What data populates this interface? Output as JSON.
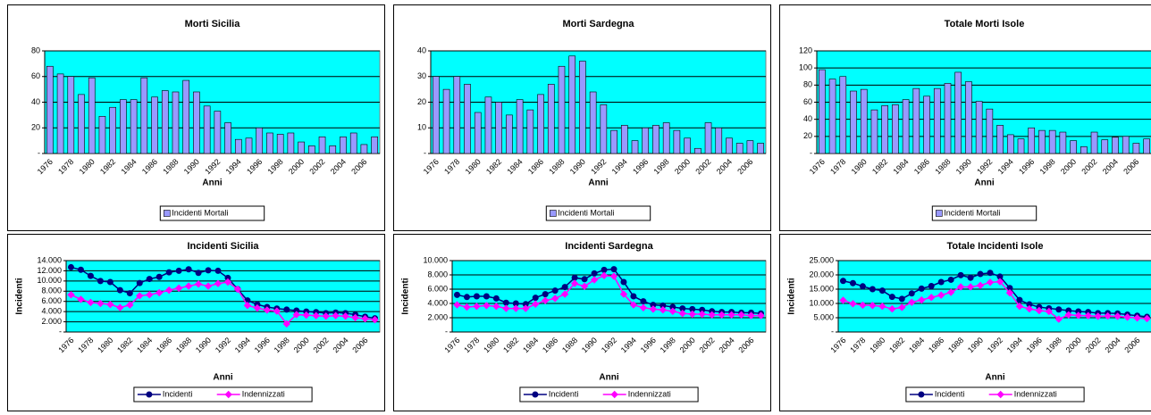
{
  "chart_data": [
    {
      "type": "bar",
      "title": "Morti Sicilia",
      "x_label": "Anni",
      "categories": [
        "1976",
        null,
        "1978",
        null,
        "1980",
        null,
        "1982",
        null,
        "1984",
        null,
        "1986",
        null,
        "1988",
        null,
        "1990",
        null,
        "1992",
        null,
        "1994",
        null,
        "1996",
        null,
        "1998",
        null,
        "2000",
        null,
        "2002",
        null,
        "2004",
        null,
        "2006",
        null
      ],
      "series": [
        {
          "name": "Incidenti Mortali",
          "color": "#9999ff",
          "values": [
            68,
            62,
            60,
            46,
            59,
            29,
            36,
            42,
            42,
            59,
            44,
            49,
            48,
            57,
            48,
            37,
            33,
            24,
            11,
            12,
            20,
            16,
            15,
            16,
            9,
            6,
            13,
            6,
            13,
            16,
            7,
            13
          ]
        }
      ],
      "ylim": [
        0,
        80
      ],
      "yticks": [
        {
          "value": 0,
          "label": "-"
        },
        20,
        40,
        60,
        80
      ],
      "grid": true,
      "legend": "bottom"
    },
    {
      "type": "bar",
      "title": "Morti Sardegna",
      "x_label": "Anni",
      "categories": [
        "1976",
        null,
        "1978",
        null,
        "1980",
        null,
        "1982",
        null,
        "1984",
        null,
        "1986",
        null,
        "1988",
        null,
        "1990",
        null,
        "1992",
        null,
        "1994",
        null,
        "1996",
        null,
        "1998",
        null,
        "2000",
        null,
        "2002",
        null,
        "2004",
        null,
        "2006",
        null
      ],
      "series": [
        {
          "name": "Incidenti Mortali",
          "color": "#9999ff",
          "values": [
            30,
            25,
            30,
            27,
            16,
            22,
            20,
            15,
            21,
            17,
            23,
            27,
            34,
            38,
            36,
            24,
            19,
            9,
            11,
            5,
            10,
            11,
            12,
            9,
            6,
            2,
            12,
            10,
            6,
            4,
            5,
            4
          ]
        }
      ],
      "ylim": [
        0,
        40
      ],
      "yticks": [
        {
          "value": 0,
          "label": "-"
        },
        10,
        20,
        30,
        40
      ],
      "grid": true,
      "legend": "bottom"
    },
    {
      "type": "bar",
      "title": "Totale Morti Isole",
      "x_label": "Anni",
      "categories": [
        "1976",
        null,
        "1978",
        null,
        "1980",
        null,
        "1982",
        null,
        "1984",
        null,
        "1986",
        null,
        "1988",
        null,
        "1990",
        null,
        "1992",
        null,
        "1994",
        null,
        "1996",
        null,
        "1998",
        null,
        "2000",
        null,
        "2002",
        null,
        "2004",
        null,
        "2006",
        null
      ],
      "series": [
        {
          "name": "Incidenti Mortali",
          "color": "#9999ff",
          "values": [
            98,
            87,
            90,
            73,
            75,
            51,
            56,
            57,
            63,
            76,
            67,
            76,
            82,
            95,
            84,
            61,
            52,
            33,
            22,
            17,
            30,
            27,
            27,
            25,
            15,
            8,
            25,
            16,
            19,
            20,
            12,
            17
          ]
        }
      ],
      "ylim": [
        0,
        120
      ],
      "yticks": [
        {
          "value": 0,
          "label": "-"
        },
        20,
        40,
        60,
        80,
        100,
        120
      ],
      "grid": true,
      "legend": "bottom"
    },
    {
      "type": "line",
      "title": "Incidenti Sicilia",
      "x_label": "Anni",
      "y_label": "Incidenti",
      "categories": [
        "1976",
        null,
        "1978",
        null,
        "1980",
        null,
        "1982",
        null,
        "1984",
        null,
        "1986",
        null,
        "1988",
        null,
        "1990",
        null,
        "1992",
        null,
        "1994",
        null,
        "1996",
        null,
        "1998",
        null,
        "2000",
        null,
        "2002",
        null,
        "2004",
        null,
        "2006",
        null
      ],
      "series": [
        {
          "name": "Incidenti",
          "color": "#000080",
          "marker": "circle",
          "values": [
            12700,
            12200,
            11000,
            10000,
            9800,
            8200,
            7600,
            9600,
            10400,
            10800,
            11700,
            12000,
            12300,
            11600,
            12100,
            12000,
            10600,
            8400,
            6200,
            5400,
            4900,
            4600,
            4400,
            4200,
            4000,
            3900,
            3700,
            3800,
            3700,
            3400,
            3000,
            2700
          ]
        },
        {
          "name": "Indennizzati",
          "color": "#ff00ff",
          "marker": "diamond",
          "values": [
            7300,
            6400,
            5800,
            5600,
            5400,
            4800,
            5300,
            7100,
            7300,
            7700,
            8200,
            8600,
            9000,
            9400,
            9000,
            9500,
            9800,
            8400,
            5200,
            4700,
            4300,
            4100,
            1600,
            3400,
            3300,
            3200,
            3100,
            3200,
            3100,
            2800,
            2600,
            2400
          ]
        }
      ],
      "ylim": [
        0,
        14000
      ],
      "yticks": [
        {
          "value": 0,
          "label": "-"
        },
        {
          "value": 2000,
          "label": "2.000"
        },
        {
          "value": 4000,
          "label": "4.000"
        },
        {
          "value": 6000,
          "label": "6.000"
        },
        {
          "value": 8000,
          "label": "8.000"
        },
        {
          "value": 10000,
          "label": "10.000"
        },
        {
          "value": 12000,
          "label": "12.000"
        },
        {
          "value": 14000,
          "label": "14.000"
        }
      ],
      "grid": true,
      "legend": "bottom"
    },
    {
      "type": "line",
      "title": "Incidenti Sardegna",
      "x_label": "Anni",
      "y_label": "Incidenti",
      "categories": [
        "1976",
        null,
        "1978",
        null,
        "1980",
        null,
        "1982",
        null,
        "1984",
        null,
        "1986",
        null,
        "1988",
        null,
        "1990",
        null,
        "1992",
        null,
        "1994",
        null,
        "1996",
        null,
        "1998",
        null,
        "2000",
        null,
        "2002",
        null,
        "2004",
        null,
        "2006",
        null
      ],
      "series": [
        {
          "name": "Incidenti",
          "color": "#000080",
          "marker": "circle",
          "values": [
            5200,
            4900,
            5000,
            5000,
            4700,
            4100,
            4000,
            3900,
            4800,
            5300,
            5800,
            6300,
            7600,
            7400,
            8200,
            8700,
            8800,
            7000,
            5000,
            4300,
            3800,
            3700,
            3500,
            3300,
            3200,
            3100,
            2900,
            2800,
            2800,
            2700,
            2700,
            2600
          ]
        },
        {
          "name": "Indennizzati",
          "color": "#ff00ff",
          "marker": "diamond",
          "values": [
            3800,
            3500,
            3600,
            3700,
            3600,
            3300,
            3300,
            3300,
            3900,
            4400,
            4700,
            5300,
            6800,
            6400,
            7300,
            7900,
            7800,
            5300,
            3800,
            3400,
            3200,
            3100,
            2900,
            2600,
            2500,
            2500,
            2400,
            2400,
            2400,
            2400,
            2300,
            2300
          ]
        }
      ],
      "ylim": [
        0,
        10000
      ],
      "yticks": [
        {
          "value": 0,
          "label": "-"
        },
        {
          "value": 2000,
          "label": "2.000"
        },
        {
          "value": 4000,
          "label": "4.000"
        },
        {
          "value": 6000,
          "label": "6.000"
        },
        {
          "value": 8000,
          "label": "8.000"
        },
        {
          "value": 10000,
          "label": "10.000"
        }
      ],
      "grid": true,
      "legend": "bottom"
    },
    {
      "type": "line",
      "title": "Totale Incidenti Isole",
      "x_label": "Anni",
      "y_label": "Incidenti",
      "categories": [
        "1976",
        null,
        "1978",
        null,
        "1980",
        null,
        "1982",
        null,
        "1984",
        null,
        "1986",
        null,
        "1988",
        null,
        "1990",
        null,
        "1992",
        null,
        "1994",
        null,
        "1996",
        null,
        "1998",
        null,
        "2000",
        null,
        "2002",
        null,
        "2004",
        null,
        "2006",
        null
      ],
      "series": [
        {
          "name": "Incidenti",
          "color": "#000080",
          "marker": "circle",
          "values": [
            17900,
            17100,
            16000,
            15000,
            14500,
            12300,
            11600,
            13500,
            15200,
            16100,
            17500,
            18300,
            19900,
            19000,
            20300,
            20700,
            19400,
            15400,
            11200,
            9700,
            8700,
            8300,
            7900,
            7500,
            7200,
            7000,
            6600,
            6600,
            6500,
            6100,
            5700,
            5300
          ]
        },
        {
          "name": "Indennizzati",
          "color": "#ff00ff",
          "marker": "diamond",
          "values": [
            11100,
            9900,
            9400,
            9300,
            9000,
            8100,
            8600,
            10400,
            11200,
            12100,
            12900,
            13900,
            15800,
            15800,
            16300,
            17400,
            17600,
            13700,
            9000,
            8100,
            7500,
            7200,
            4500,
            6000,
            5800,
            5700,
            5500,
            5600,
            5500,
            5200,
            4900,
            4700
          ]
        }
      ],
      "ylim": [
        0,
        25000
      ],
      "yticks": [
        {
          "value": 0,
          "label": "-"
        },
        {
          "value": 5000,
          "label": "5.000"
        },
        {
          "value": 10000,
          "label": "10.000"
        },
        {
          "value": 15000,
          "label": "15.000"
        },
        {
          "value": 20000,
          "label": "20.000"
        },
        {
          "value": 25000,
          "label": "25.000"
        }
      ],
      "grid": true,
      "legend": "bottom"
    }
  ]
}
